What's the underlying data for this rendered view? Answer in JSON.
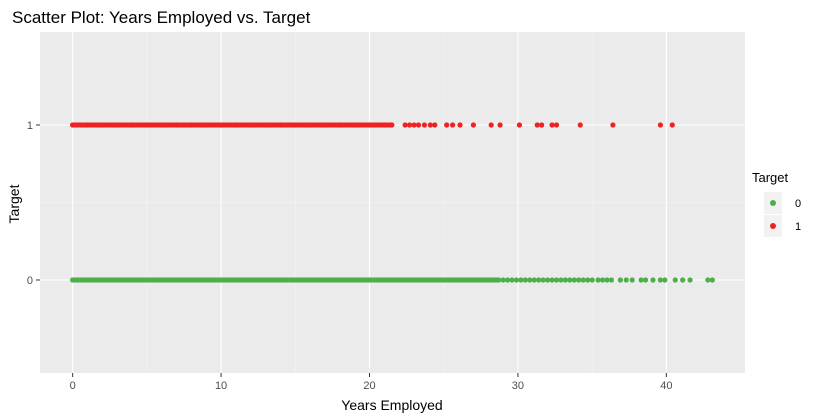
{
  "chart_data": {
    "type": "scatter",
    "title": "Scatter Plot: Years Employed vs. Target",
    "xlabel": "Years Employed",
    "ylabel": "Target",
    "xlim": [
      -2.2,
      45.3
    ],
    "ylim": [
      -0.6,
      1.6
    ],
    "x_ticks": [
      0,
      10,
      20,
      30,
      40
    ],
    "y_ticks": [
      0,
      1
    ],
    "y_tick_labels": [
      "0",
      "1"
    ],
    "grid": true,
    "legend": {
      "title": "Target",
      "position": "right",
      "entries": [
        {
          "label": "0",
          "color": "#4daf4a"
        },
        {
          "label": "1",
          "color": "#ee2222"
        }
      ]
    },
    "colors": {
      "panel": "#ebebeb",
      "grid_major": "#ffffff",
      "grid_minor": "#f5f5f5",
      "axis_text": "#4d4d4d"
    },
    "series": [
      {
        "name": "0",
        "color": "#4daf4a",
        "y": 0,
        "x_dense_range": [
          0,
          28.7
        ],
        "x": [
          0,
          1,
          2,
          3,
          4,
          5,
          6,
          7,
          8,
          9,
          10,
          11,
          12,
          13,
          14,
          15,
          16,
          17,
          18,
          19,
          20,
          21,
          22,
          23,
          24,
          25,
          26,
          27,
          28,
          28.7,
          29.0,
          29.3,
          29.6,
          29.9,
          30.2,
          30.5,
          30.8,
          31.1,
          31.4,
          31.7,
          32.0,
          32.3,
          32.6,
          32.9,
          33.2,
          33.5,
          33.8,
          34.1,
          34.4,
          34.7,
          35.0,
          35.4,
          35.7,
          36.0,
          36.3,
          36.9,
          37.3,
          37.7,
          38.3,
          38.6,
          39.1,
          39.6,
          39.9,
          40.6,
          41.1,
          41.6,
          42.8,
          43.1
        ]
      },
      {
        "name": "1",
        "color": "#ee2222",
        "y": 1,
        "x_dense_range": [
          0,
          21.5
        ],
        "x": [
          0,
          1,
          2,
          3,
          4,
          5,
          6,
          7,
          8,
          9,
          10,
          11,
          12,
          13,
          14,
          15,
          16,
          17,
          18,
          19,
          20,
          21,
          21.5,
          22.4,
          22.7,
          23.0,
          23.3,
          23.7,
          24.1,
          24.4,
          25.2,
          25.6,
          26.1,
          27.0,
          28.2,
          28.8,
          30.1,
          31.3,
          31.6,
          32.3,
          32.6,
          34.2,
          36.4,
          39.6,
          40.4
        ]
      }
    ]
  }
}
